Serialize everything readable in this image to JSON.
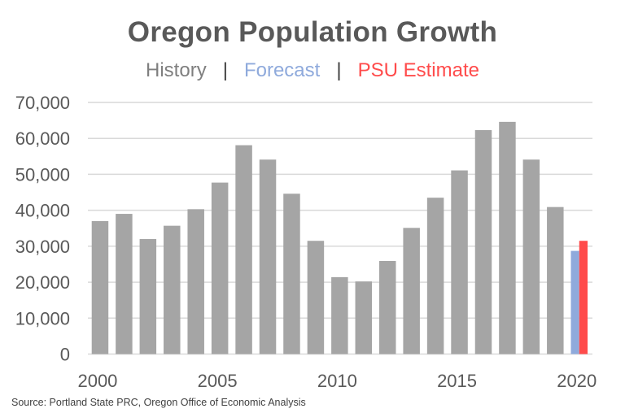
{
  "chart_data": {
    "type": "bar",
    "title": "Oregon Population Growth",
    "subtitle": {
      "history": "History",
      "separator": "|",
      "forecast": "Forecast",
      "estimate": "PSU Estimate"
    },
    "xlabel": "",
    "ylabel": "",
    "ylim": [
      0,
      70000
    ],
    "yticks": [
      0,
      10000,
      20000,
      30000,
      40000,
      50000,
      60000,
      70000
    ],
    "ytick_labels": [
      "0",
      "10,000",
      "20,000",
      "30,000",
      "40,000",
      "50,000",
      "60,000",
      "70,000"
    ],
    "xtick_labels": [
      "2000",
      "2005",
      "2010",
      "2015",
      "2020"
    ],
    "grid": true,
    "categories": [
      2000,
      2001,
      2002,
      2003,
      2004,
      2005,
      2006,
      2007,
      2008,
      2009,
      2010,
      2011,
      2012,
      2013,
      2014,
      2015,
      2016,
      2017,
      2018,
      2019,
      2020
    ],
    "series": [
      {
        "name": "History",
        "color": "#a5a5a5",
        "values": [
          37000,
          39000,
          32000,
          35700,
          40300,
          47700,
          58100,
          54100,
          44600,
          31500,
          21400,
          20200,
          25900,
          35100,
          43500,
          51100,
          62300,
          64600,
          54100,
          40900,
          null
        ]
      },
      {
        "name": "Forecast",
        "color": "#8faadc",
        "values": [
          null,
          null,
          null,
          null,
          null,
          null,
          null,
          null,
          null,
          null,
          null,
          null,
          null,
          null,
          null,
          null,
          null,
          null,
          null,
          null,
          28700
        ]
      },
      {
        "name": "PSU Estimate",
        "color": "#ff4b4b",
        "values": [
          null,
          null,
          null,
          null,
          null,
          null,
          null,
          null,
          null,
          null,
          null,
          null,
          null,
          null,
          null,
          null,
          null,
          null,
          null,
          null,
          31500
        ]
      }
    ]
  },
  "source": "Source: Portland State PRC, Oregon Office of Economic Analysis"
}
